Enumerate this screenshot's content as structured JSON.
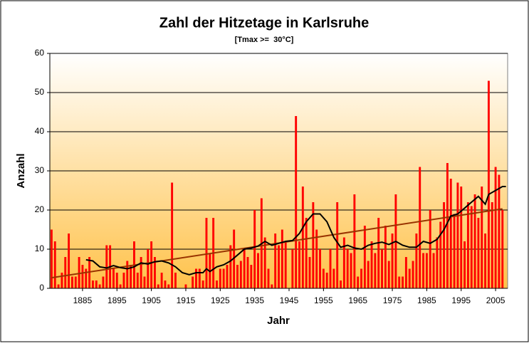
{
  "chart_data": {
    "type": "bar",
    "title": "Zahl der Hitzetage in Karlsruhe",
    "subtitle": "[Tmax >=  30°C]",
    "x_label": "Jahr",
    "y_label": "Anzahl",
    "color": "#ff0000",
    "x": [
      1876,
      1877,
      1878,
      1879,
      1880,
      1881,
      1882,
      1883,
      1884,
      1885,
      1886,
      1887,
      1888,
      1889,
      1890,
      1891,
      1892,
      1893,
      1894,
      1895,
      1896,
      1897,
      1898,
      1899,
      1900,
      1901,
      1902,
      1903,
      1904,
      1905,
      1906,
      1907,
      1908,
      1909,
      1910,
      1911,
      1912,
      1913,
      1914,
      1915,
      1916,
      1917,
      1918,
      1919,
      1920,
      1921,
      1922,
      1923,
      1924,
      1925,
      1926,
      1927,
      1928,
      1929,
      1930,
      1931,
      1932,
      1933,
      1934,
      1935,
      1936,
      1937,
      1938,
      1939,
      1940,
      1941,
      1942,
      1943,
      1944,
      1945,
      1946,
      1947,
      1948,
      1949,
      1950,
      1951,
      1952,
      1953,
      1954,
      1955,
      1956,
      1957,
      1958,
      1959,
      1960,
      1961,
      1962,
      1963,
      1964,
      1965,
      1966,
      1967,
      1968,
      1969,
      1970,
      1971,
      1972,
      1973,
      1974,
      1975,
      1976,
      1977,
      1978,
      1979,
      1980,
      1981,
      1982,
      1983,
      1984,
      1985,
      1986,
      1987,
      1988,
      1989,
      1990,
      1991,
      1992,
      1993,
      1994,
      1995,
      1996,
      1997,
      1998,
      1999,
      2000,
      2001,
      2002,
      2003,
      2004,
      2005,
      2006,
      2007
    ],
    "values": [
      15,
      12,
      1,
      4,
      8,
      14,
      3,
      3,
      8,
      6,
      5,
      8,
      2,
      2,
      1,
      3,
      11,
      11,
      5,
      4,
      1,
      4,
      7,
      6,
      12,
      4,
      8,
      3,
      10,
      12,
      8,
      1,
      4,
      2,
      1,
      27,
      4,
      0,
      0,
      1,
      0,
      3,
      5,
      5,
      2,
      18,
      9,
      18,
      2,
      5,
      5,
      6,
      11,
      15,
      6,
      7,
      10,
      8,
      6,
      20,
      9,
      23,
      13,
      5,
      1,
      14,
      11,
      15,
      12,
      0,
      10,
      44,
      12,
      26,
      18,
      8,
      22,
      15,
      10,
      5,
      4,
      10,
      5,
      22,
      2,
      13,
      10,
      9,
      24,
      3,
      5,
      16,
      7,
      12,
      9,
      18,
      10,
      16,
      7,
      14,
      24,
      3,
      3,
      8,
      5,
      7,
      14,
      31,
      9,
      9,
      20,
      9,
      13,
      17,
      22,
      32,
      28,
      19,
      27,
      26,
      12,
      22,
      21,
      24,
      18,
      26,
      14,
      53,
      22,
      31,
      29,
      20
    ],
    "smooth": {
      "color": "#000000",
      "x": [
        1886,
        1888,
        1890,
        1892,
        1894,
        1896,
        1898,
        1900,
        1902,
        1904,
        1906,
        1908,
        1910,
        1912,
        1914,
        1916,
        1918,
        1920,
        1921,
        1922,
        1924,
        1926,
        1928,
        1930,
        1932,
        1934,
        1936,
        1938,
        1940,
        1942,
        1944,
        1946,
        1948,
        1950,
        1952,
        1954,
        1956,
        1958,
        1960,
        1962,
        1964,
        1966,
        1968,
        1970,
        1972,
        1974,
        1976,
        1978,
        1980,
        1982,
        1984,
        1986,
        1988,
        1990,
        1992,
        1994,
        1996,
        1998,
        2000,
        2002,
        2003,
        2005,
        2007,
        2008
      ],
      "values": [
        7.3,
        7,
        5.5,
        5.2,
        5.8,
        5.3,
        5,
        5.5,
        6.5,
        6.2,
        6.8,
        7,
        6.5,
        5.5,
        4,
        3.5,
        4,
        4,
        5,
        4.3,
        5.5,
        6,
        7,
        8.5,
        10,
        10.3,
        10.8,
        12,
        11,
        11.5,
        12,
        12.2,
        14,
        17,
        19,
        19,
        17,
        13,
        10.5,
        11,
        10.3,
        10,
        11,
        11.5,
        11.8,
        11.2,
        12,
        11,
        10.5,
        10.5,
        12,
        11.5,
        12.5,
        15,
        18.5,
        19,
        20.5,
        22,
        23.5,
        21.5,
        24,
        25,
        26,
        26
      ]
    },
    "trend": {
      "color": "#993300",
      "x": [
        1876,
        2007
      ],
      "values": [
        2.7,
        20.3
      ]
    },
    "xlim": [
      1875.5,
      2008.5
    ],
    "xticks": [
      1885,
      1895,
      1905,
      1915,
      1925,
      1935,
      1945,
      1955,
      1965,
      1975,
      1985,
      1995,
      2005
    ],
    "ylim": [
      0,
      60
    ],
    "yticks": [
      0,
      10,
      20,
      30,
      40,
      50,
      60
    ],
    "grid": true
  }
}
